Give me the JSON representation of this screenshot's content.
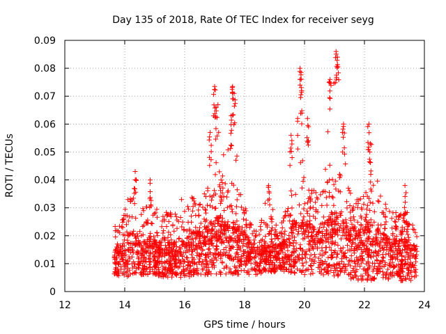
{
  "chart_data": {
    "type": "scatter",
    "title": "Day 135 of 2018, Rate Of TEC Index for receiver seyg",
    "xlabel": "GPS time / hours",
    "ylabel": "ROTI / TECUs",
    "xlim": [
      12,
      24
    ],
    "ylim": [
      0,
      0.09
    ],
    "xticks": [
      12,
      14,
      16,
      18,
      20,
      22,
      24
    ],
    "xtick_labels": [
      "12",
      "14",
      "16",
      "18",
      "20",
      "22",
      "24"
    ],
    "yticks": [
      0,
      0.01,
      0.02,
      0.03,
      0.04,
      0.05,
      0.06,
      0.07,
      0.08,
      0.09
    ],
    "ytick_labels": [
      "0",
      "0.01",
      "0.02",
      "0.03",
      "0.04",
      "0.05",
      "0.06",
      "0.07",
      "0.08",
      "0.09"
    ],
    "grid": true,
    "marker": "+",
    "color": "#ff0000",
    "x_range_covered": [
      13.65,
      23.75
    ],
    "envelope": [
      {
        "x": 13.7,
        "low": 0.006,
        "typ": 0.012,
        "high": 0.024
      },
      {
        "x": 14.0,
        "low": 0.005,
        "typ": 0.014,
        "high": 0.03
      },
      {
        "x": 14.3,
        "low": 0.006,
        "typ": 0.016,
        "high": 0.043
      },
      {
        "x": 14.6,
        "low": 0.006,
        "typ": 0.014,
        "high": 0.033
      },
      {
        "x": 14.9,
        "low": 0.006,
        "typ": 0.015,
        "high": 0.04
      },
      {
        "x": 15.2,
        "low": 0.005,
        "typ": 0.013,
        "high": 0.027
      },
      {
        "x": 15.5,
        "low": 0.005,
        "typ": 0.013,
        "high": 0.03
      },
      {
        "x": 15.8,
        "low": 0.005,
        "typ": 0.013,
        "high": 0.033
      },
      {
        "x": 16.1,
        "low": 0.005,
        "typ": 0.014,
        "high": 0.034
      },
      {
        "x": 16.3,
        "low": 0.006,
        "typ": 0.016,
        "high": 0.042
      },
      {
        "x": 16.6,
        "low": 0.006,
        "typ": 0.016,
        "high": 0.035
      },
      {
        "x": 16.9,
        "low": 0.006,
        "typ": 0.018,
        "high": 0.057
      },
      {
        "x": 17.1,
        "low": 0.006,
        "typ": 0.02,
        "high": 0.073
      },
      {
        "x": 17.4,
        "low": 0.006,
        "typ": 0.018,
        "high": 0.045
      },
      {
        "x": 17.6,
        "low": 0.006,
        "typ": 0.018,
        "high": 0.073
      },
      {
        "x": 17.9,
        "low": 0.006,
        "typ": 0.016,
        "high": 0.034
      },
      {
        "x": 18.2,
        "low": 0.006,
        "typ": 0.014,
        "high": 0.025
      },
      {
        "x": 18.5,
        "low": 0.006,
        "typ": 0.013,
        "high": 0.022
      },
      {
        "x": 18.8,
        "low": 0.007,
        "typ": 0.013,
        "high": 0.038
      },
      {
        "x": 19.1,
        "low": 0.007,
        "typ": 0.013,
        "high": 0.022
      },
      {
        "x": 19.4,
        "low": 0.007,
        "typ": 0.015,
        "high": 0.03
      },
      {
        "x": 19.6,
        "low": 0.006,
        "typ": 0.018,
        "high": 0.056
      },
      {
        "x": 19.9,
        "low": 0.006,
        "typ": 0.02,
        "high": 0.08
      },
      {
        "x": 20.1,
        "low": 0.006,
        "typ": 0.018,
        "high": 0.062
      },
      {
        "x": 20.4,
        "low": 0.006,
        "typ": 0.016,
        "high": 0.04
      },
      {
        "x": 20.7,
        "low": 0.006,
        "typ": 0.018,
        "high": 0.06
      },
      {
        "x": 20.9,
        "low": 0.006,
        "typ": 0.02,
        "high": 0.076
      },
      {
        "x": 21.1,
        "low": 0.005,
        "typ": 0.02,
        "high": 0.086
      },
      {
        "x": 21.4,
        "low": 0.005,
        "typ": 0.018,
        "high": 0.06
      },
      {
        "x": 21.7,
        "low": 0.004,
        "typ": 0.016,
        "high": 0.038
      },
      {
        "x": 21.9,
        "low": 0.003,
        "typ": 0.015,
        "high": 0.034
      },
      {
        "x": 22.2,
        "low": 0.004,
        "typ": 0.018,
        "high": 0.06
      },
      {
        "x": 22.5,
        "low": 0.004,
        "typ": 0.016,
        "high": 0.036
      },
      {
        "x": 22.8,
        "low": 0.004,
        "typ": 0.014,
        "high": 0.032
      },
      {
        "x": 23.1,
        "low": 0.004,
        "typ": 0.013,
        "high": 0.03
      },
      {
        "x": 23.4,
        "low": 0.003,
        "typ": 0.013,
        "high": 0.038
      },
      {
        "x": 23.7,
        "low": 0.005,
        "typ": 0.012,
        "high": 0.024
      }
    ],
    "peaks": [
      {
        "x": 14.35,
        "y": 0.043
      },
      {
        "x": 14.85,
        "y": 0.04
      },
      {
        "x": 16.85,
        "y": 0.057
      },
      {
        "x": 17.0,
        "y": 0.0735
      },
      {
        "x": 17.05,
        "y": 0.066
      },
      {
        "x": 17.55,
        "y": 0.063
      },
      {
        "x": 17.6,
        "y": 0.0735
      },
      {
        "x": 17.65,
        "y": 0.071
      },
      {
        "x": 18.8,
        "y": 0.038
      },
      {
        "x": 19.55,
        "y": 0.056
      },
      {
        "x": 19.85,
        "y": 0.08
      },
      {
        "x": 19.9,
        "y": 0.072
      },
      {
        "x": 20.1,
        "y": 0.062
      },
      {
        "x": 20.85,
        "y": 0.076
      },
      {
        "x": 21.05,
        "y": 0.086
      },
      {
        "x": 21.1,
        "y": 0.084
      },
      {
        "x": 21.3,
        "y": 0.06
      },
      {
        "x": 22.15,
        "y": 0.06
      },
      {
        "x": 22.2,
        "y": 0.053
      },
      {
        "x": 23.35,
        "y": 0.038
      }
    ]
  }
}
